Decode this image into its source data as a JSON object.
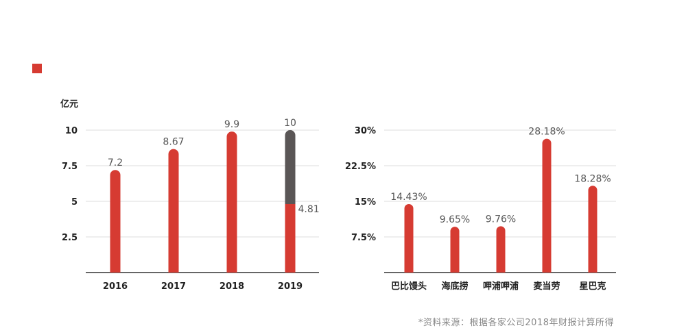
{
  "colors": {
    "red": "#d63b32",
    "gray": "#5a5656",
    "grid": "#dddddd",
    "axis": "#333333",
    "value_label": "#555555",
    "tick_label": "#222222"
  },
  "source_note": "*资料来源：根据各家公司2018年财报计算所得",
  "chart_data": [
    {
      "type": "bar",
      "title": "",
      "ylabel": "亿元",
      "xlabel": "",
      "categories": [
        "2016",
        "2017",
        "2018",
        "2019"
      ],
      "ylim": [
        0,
        10
      ],
      "yticks": [
        2.5,
        5,
        7.5,
        10
      ],
      "ytick_labels": [
        "2.5",
        "5",
        "7.5",
        "10"
      ],
      "grid": true,
      "series": [
        {
          "name": "red",
          "values": [
            7.2,
            8.67,
            9.9,
            4.81
          ]
        },
        {
          "name": "gray",
          "values": [
            0,
            0,
            0,
            10
          ]
        }
      ],
      "data_labels": [
        "7.2",
        "8.67",
        "9.9",
        "10"
      ],
      "extra_labels": [
        {
          "category": "2019",
          "value": 4.81,
          "text": "4.81"
        }
      ]
    },
    {
      "type": "bar",
      "title": "",
      "ylabel": "",
      "xlabel": "",
      "categories": [
        "巴比馒头",
        "海底捞",
        "呷浦呷浦",
        "麦当劳",
        "星巴克"
      ],
      "ylim": [
        0,
        30
      ],
      "yticks": [
        7.5,
        15,
        22.5,
        30
      ],
      "ytick_labels": [
        "7.5%",
        "15%",
        "22.5%",
        "30%"
      ],
      "grid": true,
      "series": [
        {
          "name": "red",
          "values": [
            14.43,
            9.65,
            9.76,
            28.18,
            18.28
          ]
        }
      ],
      "data_labels": [
        "14.43%",
        "9.65%",
        "9.76%",
        "28.18%",
        "18.28%"
      ]
    }
  ]
}
